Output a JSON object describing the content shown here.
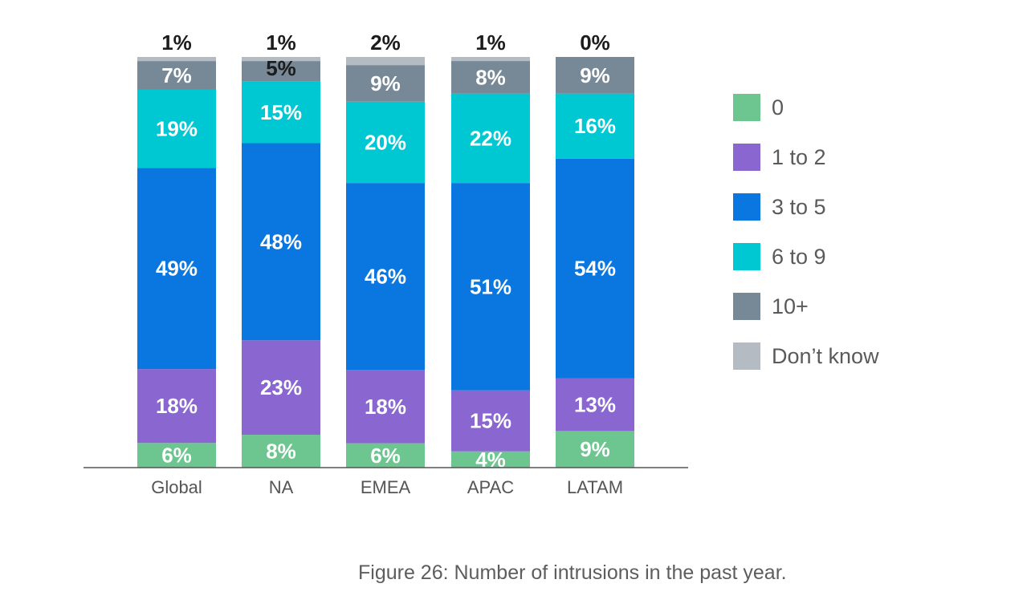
{
  "chart_data": {
    "type": "bar",
    "stacked": true,
    "categories": [
      "Global",
      "NA",
      "EMEA",
      "APAC",
      "LATAM"
    ],
    "series": [
      {
        "name": "0",
        "color": "#6dc58f",
        "values": [
          6,
          8,
          6,
          4,
          9
        ],
        "labels": [
          "6%",
          "8%",
          "6%",
          "4%",
          "9%"
        ]
      },
      {
        "name": "1 to 2",
        "color": "#8a66d1",
        "values": [
          18,
          23,
          18,
          15,
          13
        ],
        "labels": [
          "18%",
          "23%",
          "18%",
          "15%",
          "13%"
        ]
      },
      {
        "name": "3 to 5",
        "color": "#0a76df",
        "values": [
          49,
          48,
          46,
          51,
          54
        ],
        "labels": [
          "49%",
          "48%",
          "46%",
          "51%",
          "54%"
        ]
      },
      {
        "name": "6 to 9",
        "color": "#00c8d2",
        "values": [
          19,
          15,
          20,
          22,
          16
        ],
        "labels": [
          "19%",
          "15%",
          "20%",
          "22%",
          "16%"
        ]
      },
      {
        "name": "10+",
        "color": "#778897",
        "values": [
          7,
          5,
          9,
          8,
          9
        ],
        "labels": [
          "7%",
          "5%",
          "9%",
          "8%",
          "9%"
        ]
      },
      {
        "name": "Don’t know",
        "color": "#b5bbc3",
        "values": [
          1,
          1,
          2,
          1,
          0
        ],
        "labels": [
          "1%",
          "1%",
          "2%",
          "1%",
          "0%"
        ]
      }
    ],
    "ylim": [
      0,
      100
    ],
    "legend_position": "right",
    "grid": false,
    "caption": "Figure 26: Number of intrusions in the past year."
  }
}
